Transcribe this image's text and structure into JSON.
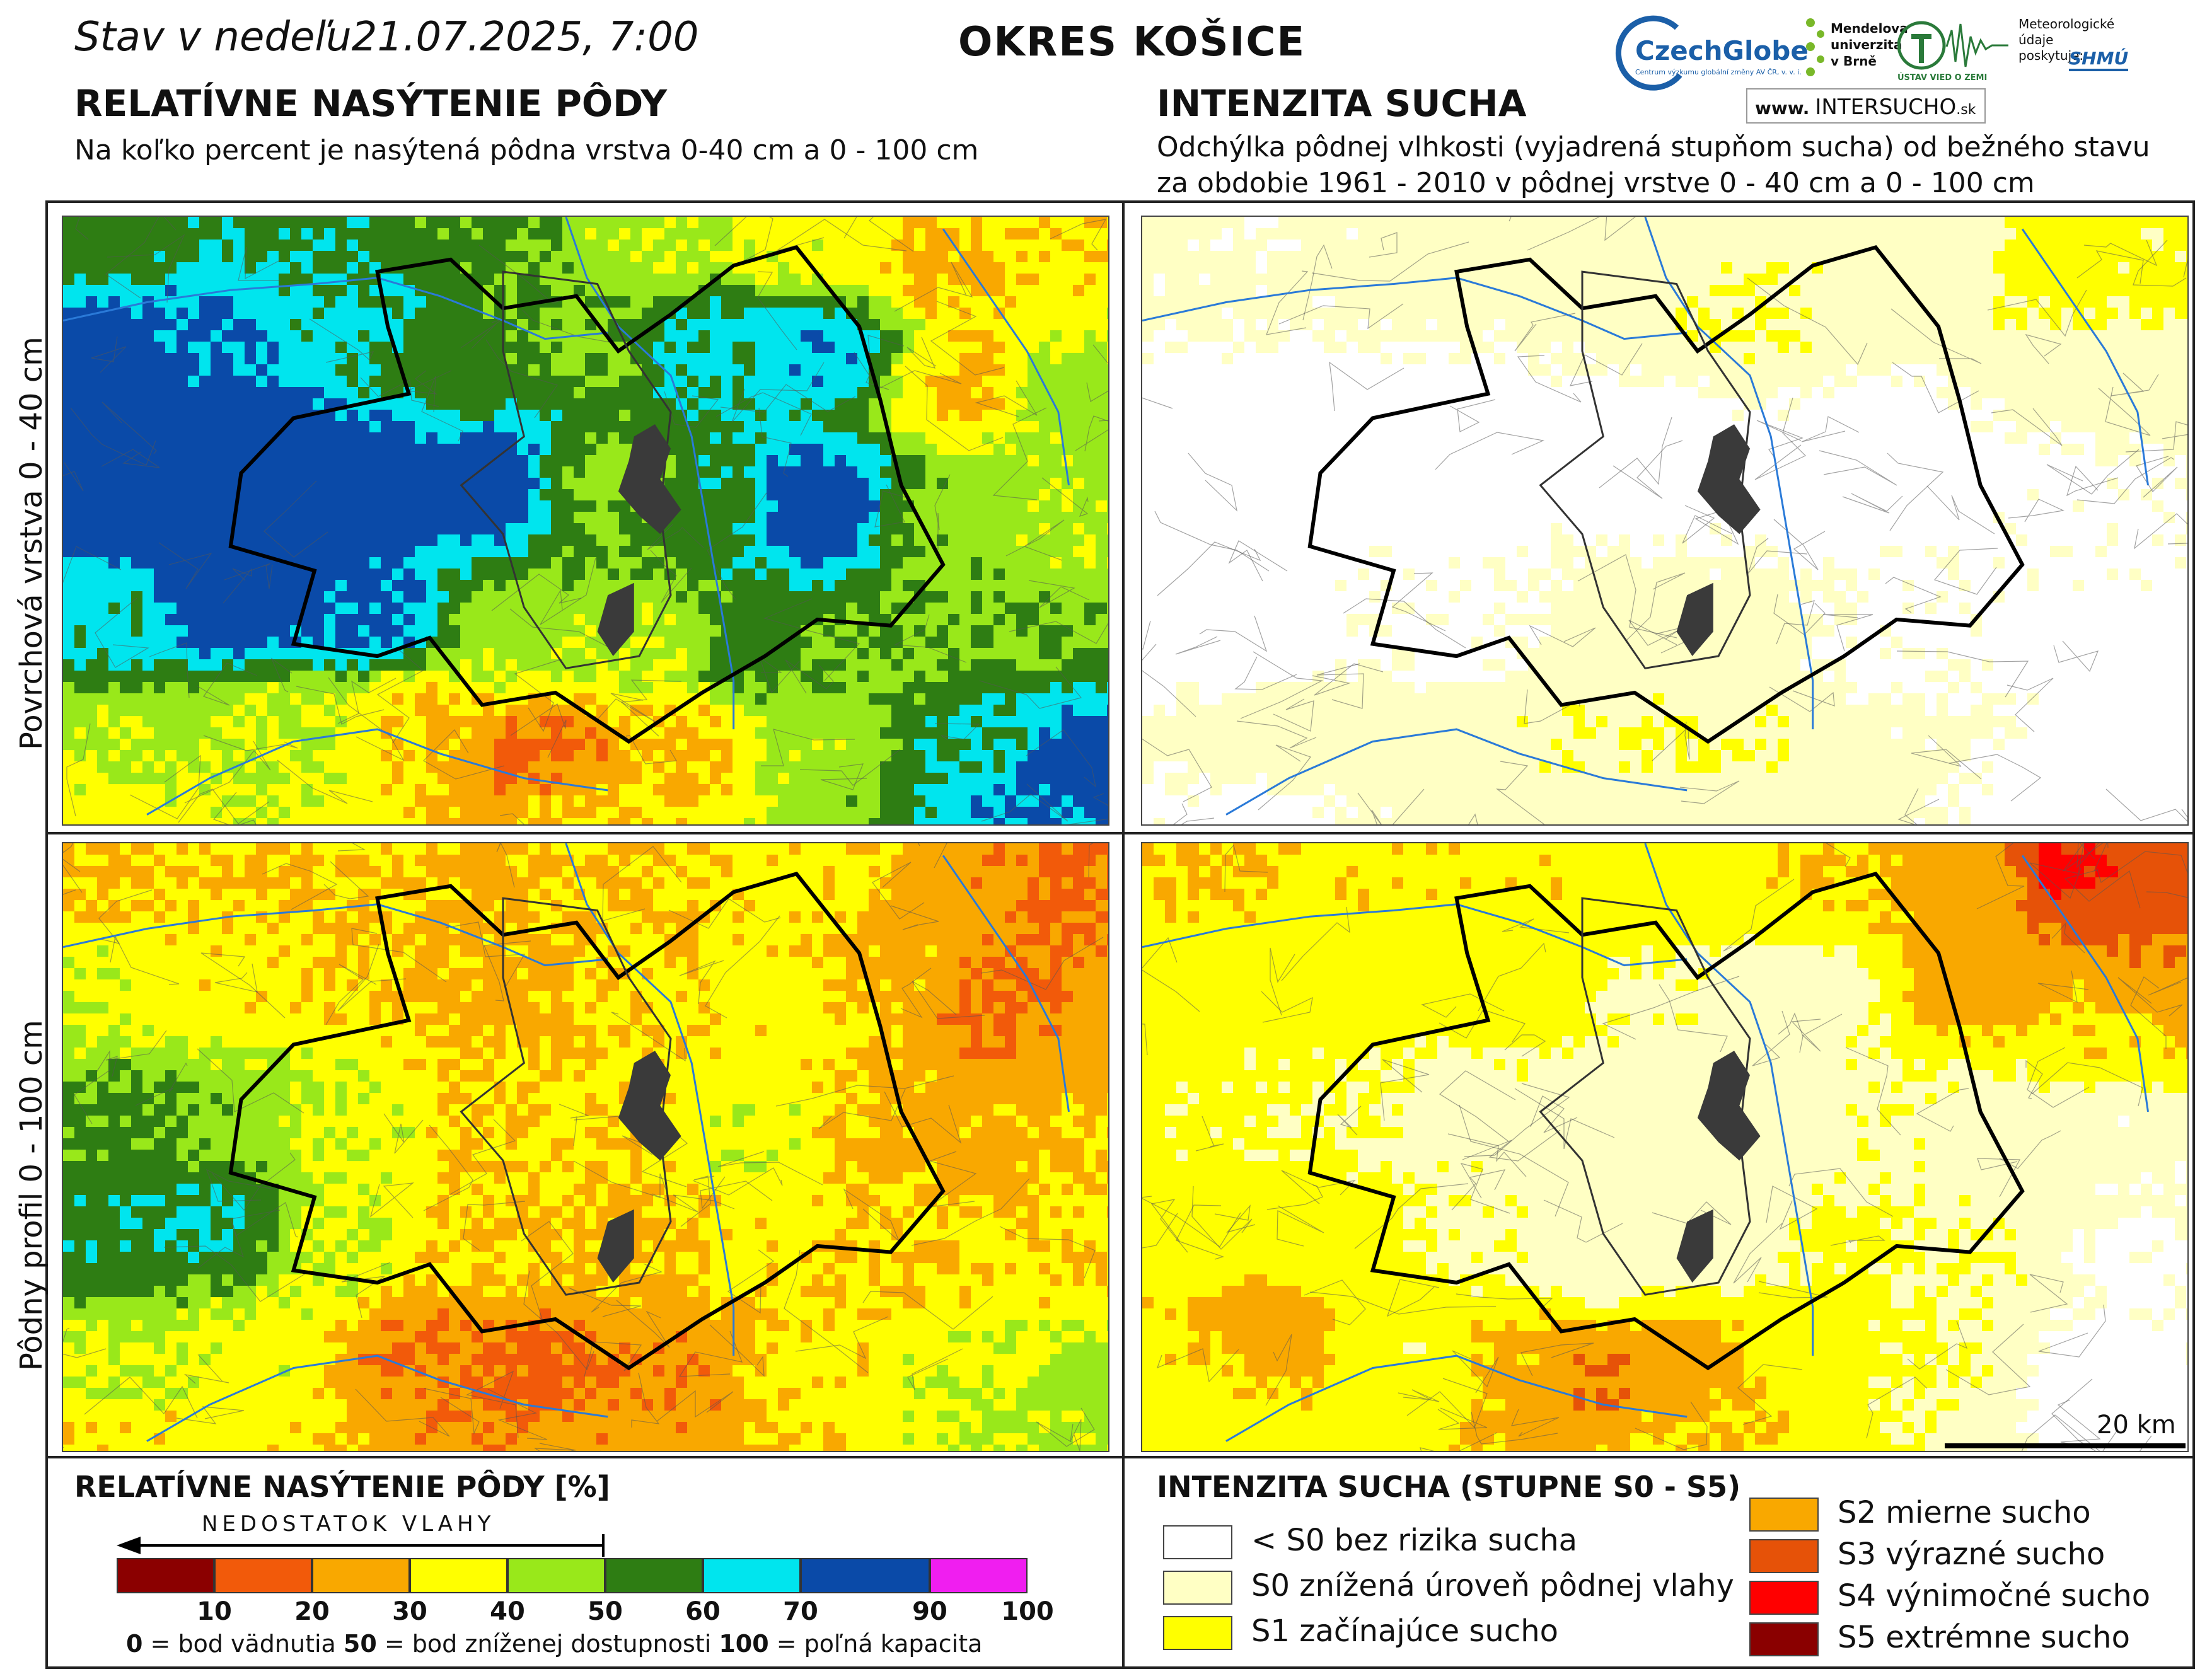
{
  "header": {
    "date": "Stav v nedeľu21.07.2025, 7:00",
    "district": "OKRES KOŠICE"
  },
  "logos": {
    "czechglobe": "CzechGlobe",
    "czechglobe_sub": "Centrum výzkumu globální změny AV ČR, v. v. i.",
    "mendelu": [
      "Mendelova",
      "univerzita",
      "v Brně"
    ],
    "uvzsv": "ÚSTAV VIED O ZEMI",
    "meteo": [
      "Meteorologické",
      "údaje",
      "poskytuje:"
    ],
    "shmu": "SHMÚ",
    "url_prefix": "www.",
    "url_brand": "INTERSUCHO",
    "url_suffix": ".sk"
  },
  "left_section": {
    "title": "RELATÍVNE NASÝTENIE PÔDY",
    "subtitle": "Na koľko percent je nasýtená pôdna vrstva 0-40 cm a 0 - 100 cm"
  },
  "right_section": {
    "title": "INTENZITA SUCHA",
    "subtitle_line1": "Odchýlka pôdnej vlhkosti (vyjadrená stupňom sucha) od bežného stavu",
    "subtitle_line2": "za obdobie 1961 - 2010 v pôdnej vrstve 0 - 40 cm a 0 - 100 cm"
  },
  "row_labels": {
    "top": "Povrchová vrstva 0 - 40 cm",
    "bottom": "Pôdny profil 0 - 100 cm"
  },
  "scale_bar": {
    "label": "20 km"
  },
  "colors": {
    "sat_10": "#8b0000",
    "sat_20": "#f25a0a",
    "sat_30": "#f9a800",
    "sat_40": "#ffff00",
    "sat_50": "#99e81a",
    "sat_60": "#2e7d13",
    "sat_70": "#00e5ee",
    "sat_90": "#0a4aa8",
    "sat_100": "#f01ef0",
    "s_none": "#ffffff",
    "s0": "#ffffc4",
    "s1": "#ffff00",
    "s2": "#f9a800",
    "s3": "#e65208",
    "s4": "#ff0000",
    "s5": "#8a0000",
    "border": "#000000",
    "river": "#2a7ad8",
    "city": "#3a3a3a"
  },
  "legend_left": {
    "title": "RELATÍVNE NASÝTENIE PÔDY [%]",
    "arrow_label": "NEDOSTATOK VLAHY",
    "ticks": [
      "10",
      "20",
      "30",
      "40",
      "50",
      "60",
      "70",
      "90",
      "100"
    ],
    "caption_0": "0",
    "caption_0_text": " = bod vädnutia ",
    "caption_50": "50",
    "caption_50_text": " = bod zníženej dostupnosti ",
    "caption_100": "100",
    "caption_100_text": " = poľná kapacita"
  },
  "legend_right": {
    "title": "INTENZITA SUCHA (STUPNE S0 - S5)",
    "classes": [
      {
        "label": "< S0 bez rizika sucha"
      },
      {
        "label": "S0 znížená úroveň pôdnej vlahy"
      },
      {
        "label": "S1 začínajúce sucho"
      },
      {
        "label": "S2 mierne sucho"
      },
      {
        "label": "S3 výrazné sucho"
      },
      {
        "label": "S4 výnimočné sucho"
      },
      {
        "label": "S5 extrémne sucho"
      }
    ]
  }
}
